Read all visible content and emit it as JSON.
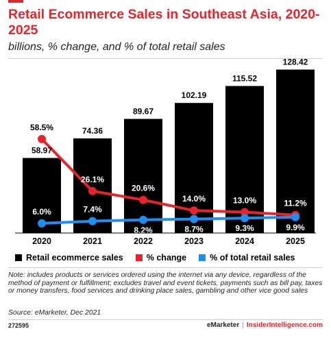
{
  "header": {
    "title": "Retail Ecommerce Sales in Southeast Asia, 2020-2025",
    "subtitle": "billions, % change, and % of total retail sales"
  },
  "colors": {
    "accent": "#e8232a",
    "bar": "#000000",
    "line_change": "#e8232a",
    "line_share": "#1e8ff0"
  },
  "chart_data": {
    "type": "bar",
    "categories": [
      "2020",
      "2021",
      "2022",
      "2023",
      "2024",
      "2025"
    ],
    "series": [
      {
        "name": "Retail ecommerce sales",
        "type": "bar",
        "values": [
          58.97,
          74.36,
          89.67,
          102.19,
          115.52,
          128.42
        ],
        "labels": [
          "58.97",
          "74.36",
          "89.67",
          "102.19",
          "115.52",
          "128.42"
        ]
      },
      {
        "name": "% change",
        "type": "line",
        "values": [
          58.5,
          26.1,
          20.6,
          14.0,
          13.0,
          11.2
        ],
        "labels": [
          "58.5%",
          "26.1%",
          "20.6%",
          "14.0%",
          "13.0%",
          "11.2%"
        ]
      },
      {
        "name": "% of total retail sales",
        "type": "line",
        "values": [
          6.0,
          7.4,
          8.2,
          8.7,
          9.3,
          9.9
        ],
        "labels": [
          "6.0%",
          "7.4%",
          "8.2%",
          "8.7%",
          "9.3%",
          "9.9%"
        ]
      }
    ],
    "ylim_bars": [
      0,
      140
    ],
    "ylim_lines": [
      0,
      90
    ],
    "legend_position": "bottom"
  },
  "legend": {
    "items": [
      {
        "label": "Retail ecommerce sales",
        "color": "#000000"
      },
      {
        "label": "% change",
        "color": "#e8232a"
      },
      {
        "label": "% of total retail sales",
        "color": "#1e8ff0"
      }
    ]
  },
  "footer": {
    "note": "Note: includes products or services ordered using the internet via any device, regardless of the method of payment or fulfillment; excludes travel and event tickets, payments such as bill pay, taxes or money transfers, food services and drinking place sales, gambling and other vice good sales",
    "source": "Source: eMarketer, Dec 2021",
    "chart_id": "272595",
    "brand_left": "eMarketer",
    "brand_sep": "|",
    "brand_right": "InsiderIntelligence.com"
  }
}
